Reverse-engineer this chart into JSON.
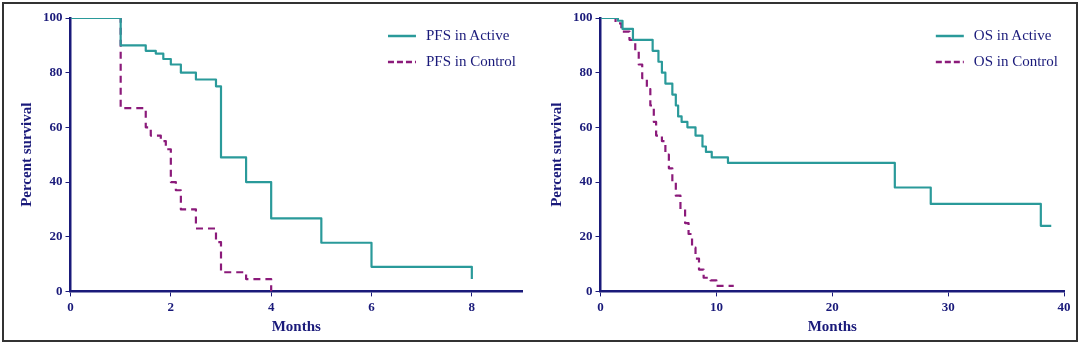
{
  "chart_data": [
    {
      "type": "step",
      "xlabel": "Months",
      "ylabel": "Percent survival",
      "xlim": [
        0,
        9
      ],
      "xticks": [
        0,
        2,
        4,
        6,
        8
      ],
      "ylim": [
        0,
        100
      ],
      "yticks": [
        0,
        20,
        40,
        60,
        80,
        100
      ],
      "legend": "top right",
      "series": [
        {
          "name": "PFS in Active",
          "color": "#2a9a9a",
          "line_style": "solid",
          "x": [
            0,
            1,
            1.5,
            1.7,
            1.85,
            2,
            2.2,
            2.5,
            2.9,
            3,
            3.5,
            4,
            5,
            6,
            8
          ],
          "values": [
            100,
            90,
            88,
            87,
            85,
            83,
            80,
            77.5,
            75,
            49,
            40,
            26.7,
            17.8,
            9,
            4.5
          ]
        },
        {
          "name": "PFS in Control",
          "color": "#8b1a7a",
          "line_style": "dashed",
          "x": [
            0,
            1,
            1.5,
            1.6,
            1.8,
            1.9,
            2,
            2.1,
            2.2,
            2.5,
            2.9,
            3,
            3.5,
            4
          ],
          "values": [
            100,
            67,
            60,
            57,
            55,
            52,
            40,
            37,
            30,
            23,
            18,
            7,
            4.5,
            0
          ]
        }
      ]
    },
    {
      "type": "step",
      "xlabel": "Months",
      "ylabel": "Percent survival",
      "xlim": [
        0,
        40
      ],
      "xticks": [
        0,
        10,
        20,
        30,
        40
      ],
      "ylim": [
        0,
        100
      ],
      "yticks": [
        0,
        20,
        40,
        60,
        80,
        100
      ],
      "legend": "top right",
      "series": [
        {
          "name": "OS in Active",
          "color": "#2a9a9a",
          "line_style": "solid",
          "x": [
            0,
            1.5,
            1.9,
            2.8,
            4.5,
            5,
            5.3,
            5.6,
            6.2,
            6.5,
            6.7,
            7,
            7.5,
            8.2,
            8.8,
            9.1,
            9.6,
            11,
            25.4,
            28.5,
            38,
            38.9
          ],
          "values": [
            100,
            99,
            96,
            92,
            88,
            84,
            80,
            76,
            72,
            68,
            64,
            62,
            60,
            57,
            53,
            51,
            49,
            47,
            38,
            32,
            24,
            24
          ]
        },
        {
          "name": "OS in Control",
          "color": "#8b1a7a",
          "line_style": "dashed",
          "x": [
            0,
            1.3,
            1.8,
            2.5,
            3,
            3.3,
            3.6,
            4,
            4.3,
            4.6,
            4.8,
            5.3,
            5.6,
            5.9,
            6.2,
            6.5,
            6.9,
            7.3,
            7.6,
            7.9,
            8.2,
            8.5,
            8.9,
            9.5,
            10,
            11.5
          ],
          "values": [
            100,
            98,
            95,
            92,
            88,
            83,
            78,
            74,
            68,
            62,
            57,
            55,
            50,
            45,
            40,
            35,
            30,
            25,
            21,
            16,
            12,
            8,
            5,
            4,
            2,
            2
          ]
        }
      ]
    }
  ]
}
